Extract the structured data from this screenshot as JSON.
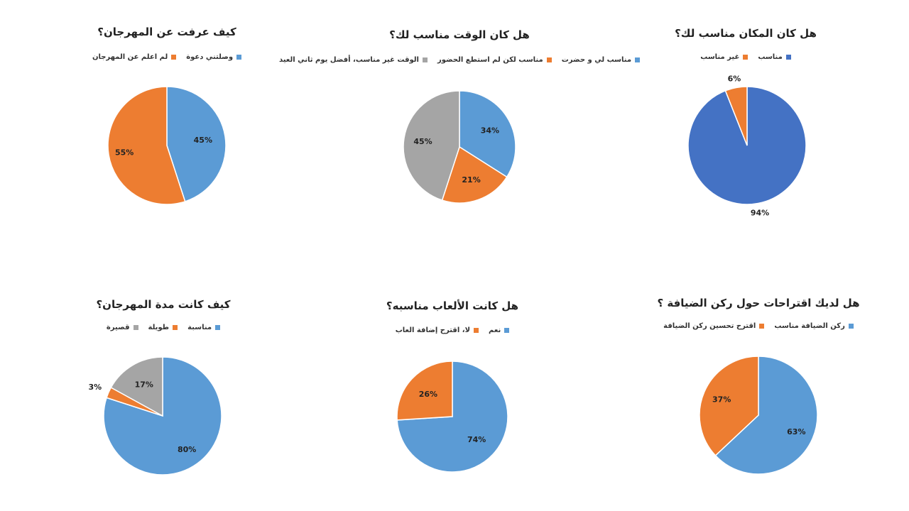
{
  "chart_data": [
    {
      "type": "pie",
      "title": "كيف عرفت عن المهرجان؟",
      "categories": [
        "وصلتني دعوة",
        "لم اعلم عن المهرجان"
      ],
      "values": [
        45,
        55
      ],
      "labels": [
        "45%",
        "55%"
      ],
      "colors": [
        "#5B9BD5",
        "#ED7D31"
      ],
      "legend": "top"
    },
    {
      "type": "pie",
      "title": "هل كان الوقت مناسب لك؟",
      "categories": [
        "مناسب لي و حضرت",
        "مناسب لكن لم استطع الحضور",
        "الوقت غير مناسب، أفضل يوم ثاني العيد"
      ],
      "values": [
        34,
        21,
        45
      ],
      "labels": [
        "34%",
        "21%",
        "45%"
      ],
      "colors": [
        "#5B9BD5",
        "#ED7D31",
        "#A5A5A5"
      ],
      "legend": "top"
    },
    {
      "type": "pie",
      "title": "هل كان المكان مناسب لك؟",
      "categories": [
        "مناسب",
        "غير مناسب"
      ],
      "values": [
        94,
        6
      ],
      "labels": [
        "94%",
        "6%"
      ],
      "colors": [
        "#4472C4",
        "#ED7D31"
      ],
      "legend": "top"
    },
    {
      "type": "pie",
      "title": "كيف كانت مدة المهرجان؟",
      "categories": [
        "مناسبة",
        "طويلة",
        "قصيرة"
      ],
      "values": [
        80,
        3,
        17
      ],
      "labels": [
        "80%",
        "3%",
        "17%"
      ],
      "colors": [
        "#5B9BD5",
        "#ED7D31",
        "#A5A5A5"
      ],
      "legend": "top"
    },
    {
      "type": "pie",
      "title": "هل كانت الألعاب مناسبه؟",
      "categories": [
        "نعم",
        "لا، اقترح إضافة العاب"
      ],
      "values": [
        74,
        26
      ],
      "labels": [
        "74%",
        "26%"
      ],
      "colors": [
        "#5B9BD5",
        "#ED7D31"
      ],
      "legend": "top"
    },
    {
      "type": "pie",
      "title": "هل لديك اقتراحات حول ركن الضيافة ؟",
      "categories": [
        "ركن الضيافة مناسب",
        "اقترح تحسين ركن الضيافة"
      ],
      "values": [
        63,
        37
      ],
      "labels": [
        "63%",
        "37%"
      ],
      "colors": [
        "#5B9BD5",
        "#ED7D31"
      ],
      "legend": "top"
    }
  ]
}
